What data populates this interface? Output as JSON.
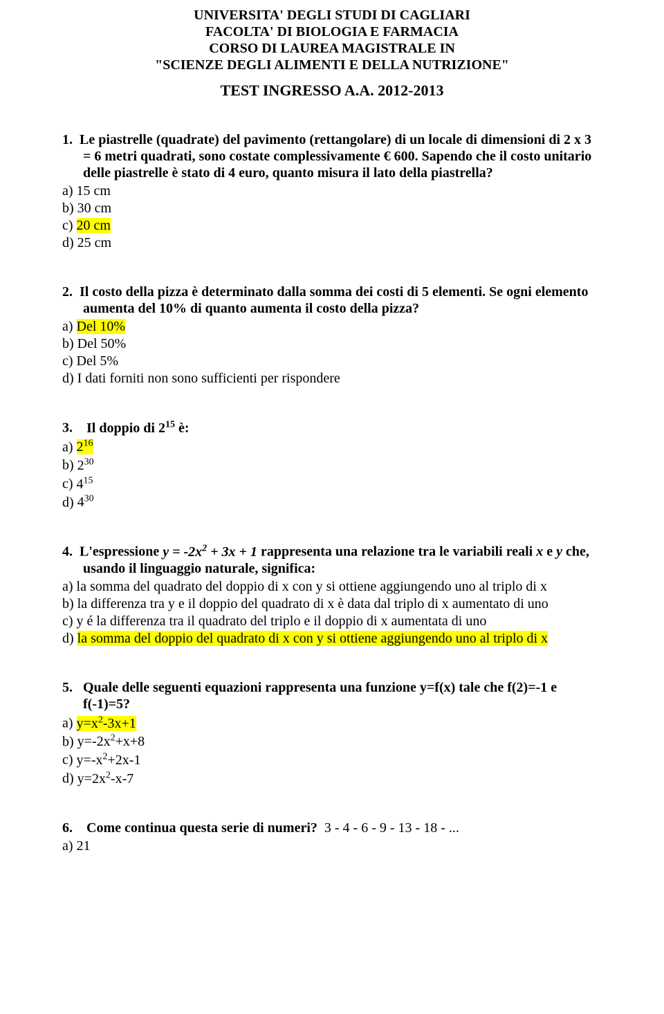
{
  "header": {
    "line1": "UNIVERSITA' DEGLI STUDI DI CAGLIARI",
    "line2": "FACOLTA' DI BIOLOGIA E FARMACIA",
    "line3": "CORSO DI LAUREA MAGISTRALE IN",
    "line4": "\"SCIENZE DEGLI ALIMENTI E DELLA NUTRIZIONE\"",
    "subtitle": "TEST INGRESSO A.A. 2012-2013"
  },
  "highlight_color": "#ffff00",
  "text_color": "#000000",
  "background_color": "#ffffff",
  "font_family": "Times New Roman",
  "questions": [
    {
      "num": "1.",
      "text_part1": "Le piastrelle (quadrate) del pavimento (rettangolare) di un locale di dimensioni di 2 x 3 = 6 metri quadrati, sono costate complessivamente € 600. Sapendo che il costo unitario delle piastrelle è stato di 4 euro, quanto misura il lato della piastrella?",
      "options": [
        {
          "label": "a)",
          "text": "15 cm",
          "hl": false
        },
        {
          "label": "b)",
          "text": "30 cm",
          "hl": false
        },
        {
          "label": "c)",
          "text": "20 cm",
          "hl": true
        },
        {
          "label": "d)",
          "text": "25 cm",
          "hl": false
        }
      ]
    },
    {
      "num": "2.",
      "text_part1": "Il costo della pizza è determinato dalla somma dei costi di 5 elementi. Se ogni elemento aumenta del 10% di quanto aumenta il costo della pizza?",
      "options": [
        {
          "label": "a)",
          "text": "Del 10%",
          "hl": true
        },
        {
          "label": "b)",
          "text": "Del 50%",
          "hl": false
        },
        {
          "label": "c)",
          "text": "Del 5%",
          "hl": false
        },
        {
          "label": "d)",
          "text": "I dati forniti non sono sufficienti per rispondere",
          "hl": false
        }
      ]
    },
    {
      "num": "3.",
      "text_part1": "Il doppio di 2",
      "text_sup1": "15",
      "text_part2": " è:",
      "power_options": [
        {
          "label": "a)",
          "base": "2",
          "exp": "16",
          "hl": true
        },
        {
          "label": "b)",
          "base": "2",
          "exp": "30",
          "hl": false
        },
        {
          "label": "c)",
          "base": "4",
          "exp": "15",
          "hl": false
        },
        {
          "label": "d)",
          "base": "4",
          "exp": "30",
          "hl": false
        }
      ]
    },
    {
      "num": "4.",
      "text_part1": "L'espressione ",
      "text_italic": "y = -2x",
      "text_sup1": "2",
      "text_part2": " + 3x + 1",
      "text_part3": " rappresenta una relazione tra le variabili reali ",
      "text_italic2": "x",
      "text_part4": " e ",
      "text_italic3": "y",
      "text_part5": " che, usando il linguaggio naturale, significa:",
      "options": [
        {
          "label": "a)",
          "text": "la somma del quadrato del doppio di x con y si ottiene aggiungendo uno al triplo di x",
          "hl": false
        },
        {
          "label": "b)",
          "text": "la differenza tra y e il doppio del quadrato di x è data dal triplo di x aumentato di uno",
          "hl": false
        },
        {
          "label": "c)",
          "text": "y é la differenza tra il quadrato del triplo e il doppio di x aumentata di uno",
          "hl": false
        },
        {
          "label": "d)",
          "text": "la somma del doppio del quadrato di x con y si ottiene aggiungendo uno al triplo di x",
          "hl": true
        }
      ]
    },
    {
      "num": "5.",
      "text_part1": "Quale delle seguenti equazioni rappresenta una funzione y=f(x) tale che f(2)=-1 e f(-1)=5?",
      "poly_options": [
        {
          "label": "a)",
          "pre": "y=x",
          "exp": "2",
          "post": "-3x+1",
          "hl": true
        },
        {
          "label": "b)",
          "pre": "y=-2x",
          "exp": "2",
          "post": "+x+8",
          "hl": false
        },
        {
          "label": "c)",
          "pre": "y=-x",
          "exp": "2",
          "post": "+2x-1",
          "hl": false
        },
        {
          "label": "d)",
          "pre": "y=2x",
          "exp": "2",
          "post": "-x-7",
          "hl": false
        }
      ]
    },
    {
      "num": "6.",
      "text_part1": "Come continua questa serie di numeri?",
      "tail": "3 - 4 - 6 - 9 - 13 - 18 - ...",
      "options": [
        {
          "label": "a)",
          "text": "21",
          "hl": false
        }
      ]
    }
  ]
}
